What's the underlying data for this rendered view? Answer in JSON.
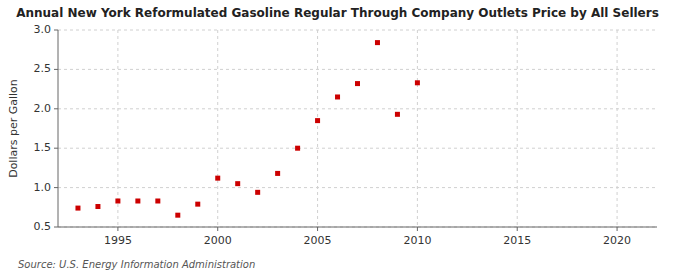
{
  "chart_data": {
    "type": "scatter",
    "title": "Annual New York Reformulated Gasoline Regular Through Company Outlets Price by All Sellers",
    "y_label": "Dollars per Gallon",
    "source": "Source: U.S. Energy Information Administration",
    "x": [
      1993,
      1994,
      1995,
      1996,
      1997,
      1998,
      1999,
      2000,
      2001,
      2002,
      2003,
      2004,
      2005,
      2006,
      2007,
      2008,
      2009,
      2010
    ],
    "values": [
      0.74,
      0.76,
      0.83,
      0.83,
      0.83,
      0.65,
      0.79,
      1.12,
      1.05,
      0.94,
      1.18,
      1.5,
      1.85,
      2.15,
      2.32,
      2.84,
      1.93,
      2.33
    ],
    "color": "#cc0000",
    "marker": "square",
    "xlim": [
      1992,
      2022
    ],
    "ylim": [
      0.5,
      3.0
    ],
    "xticks": [
      1995,
      2000,
      2005,
      2010,
      2015,
      2020
    ],
    "yticks": [
      0.5,
      {
        "value": 1.0,
        "label": "1.0"
      },
      1.5,
      {
        "value": 2.0,
        "label": "2.0"
      },
      2.5,
      {
        "value": 3.0,
        "label": "3.0"
      }
    ],
    "grid": true
  }
}
